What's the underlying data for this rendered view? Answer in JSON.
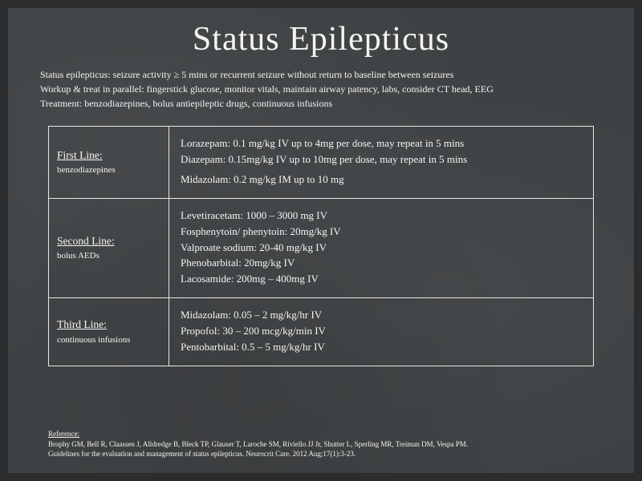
{
  "title": "Status Epilepticus",
  "intro": {
    "line1": "Status epilepticus: seizure activity ≥ 5 mins or recurrent seizure without return to baseline between seizures",
    "line2": "Workup & treat in parallel: fingerstick glucose, monitor vitals, maintain airway patency, labs, consider CT head, EEG",
    "line3": "Treatment: benzodiazepines, bolus antiepileptic drugs, continuous infusions"
  },
  "table": {
    "rows": [
      {
        "title": "First Line:",
        "subtitle": "benzodiazepines",
        "drugs": [
          "Lorazepam: 0.1 mg/kg IV up to 4mg per dose, may repeat in 5 mins",
          "Diazepam: 0.15mg/kg IV up to 10mg per dose, may repeat in 5 mins",
          "Midazolam: 0.2 mg/kg IM up to 10 mg"
        ],
        "gap_before_index": 2
      },
      {
        "title": "Second Line:",
        "subtitle": "bolus AEDs",
        "drugs": [
          "Levetiracetam: 1000 – 3000 mg IV",
          "Fosphenytoin/ phenytoin: 20mg/kg IV",
          "Valproate sodium: 20-40 mg/kg IV",
          "Phenobarbital: 20mg/kg IV",
          "Lacosamide: 200mg – 400mg IV"
        ]
      },
      {
        "title": "Third Line:",
        "subtitle": "continuous infusions",
        "drugs": [
          "Midazolam: 0.05 – 2 mg/kg/hr IV",
          "Propofol: 30 – 200 mcg/kg/min IV",
          "Pentobarbital: 0.5 – 5 mg/kg/hr IV"
        ]
      }
    ]
  },
  "reference": {
    "heading": "Reference:",
    "authors": "Brophy GM, Bell R, Claassen J, Alldredge B, Bleck TP, Glauser T, Laroche SM, Riviello JJ Jr, Shutter L, Sperling MR, Treiman DM, Vespa PM.",
    "citation": "Guidelines for the evaluation and management of status epilepticus. Neurocrit Care. 2012 Aug;17(1):3-23."
  },
  "style": {
    "background": "#3f4244",
    "text_color": "#f5f5f0",
    "border_color": "#e8e8e2",
    "title_fontsize": 42,
    "body_fontsize": 13,
    "ref_fontsize": 9
  }
}
